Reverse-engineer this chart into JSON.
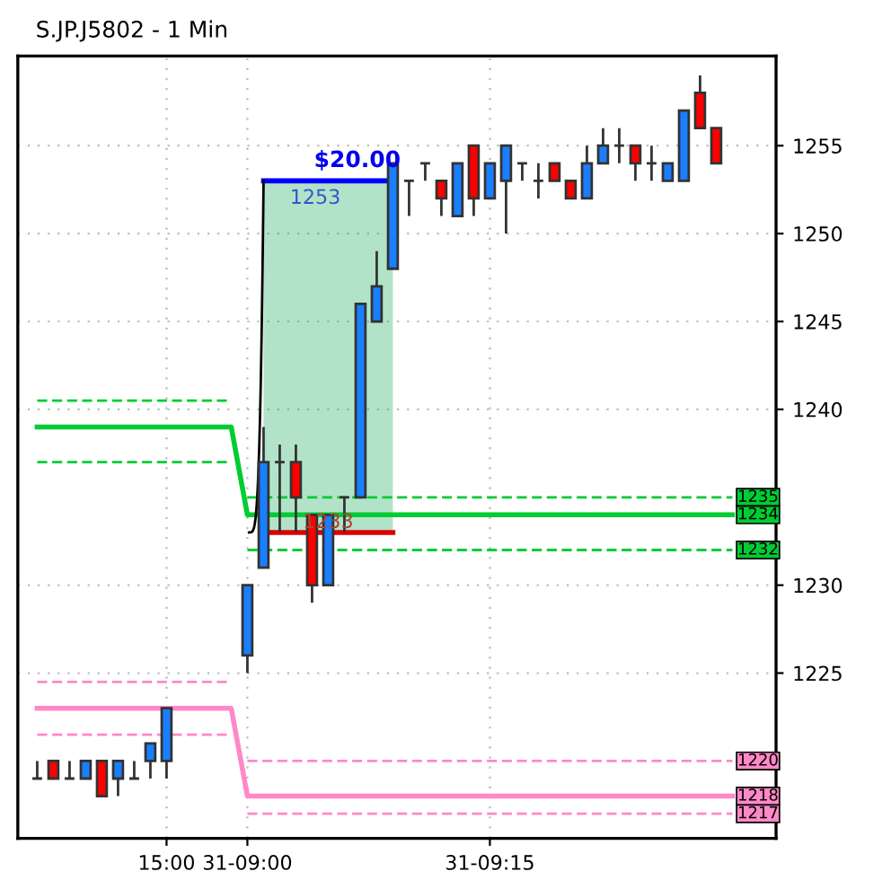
{
  "chart_data": {
    "type": "candlestick",
    "title": "S.JP.J5802 - 1 Min",
    "categories": [
      null,
      null,
      null,
      null,
      null,
      null,
      null,
      null,
      "15:00",
      null,
      null,
      null,
      null,
      "31-09:00",
      null,
      null,
      null,
      null,
      null,
      null,
      null,
      null,
      null,
      null,
      null,
      null,
      null,
      null,
      "31-09:15",
      null,
      null,
      null,
      null,
      null,
      null,
      null,
      null,
      null,
      null,
      null,
      null,
      null,
      null,
      null,
      null,
      null
    ],
    "ohlc": [
      [
        1219,
        1220,
        1219,
        1219
      ],
      [
        1220,
        1220,
        1219,
        1219
      ],
      [
        1219,
        1220,
        1219,
        1219
      ],
      [
        1219,
        1220,
        1219,
        1220
      ],
      [
        1220,
        1220,
        1218,
        1218
      ],
      [
        1219,
        1220,
        1218,
        1220
      ],
      [
        1219,
        1220,
        1219,
        1219
      ],
      [
        1220,
        1221,
        1219,
        1221
      ],
      [
        1220,
        1223,
        1219,
        1223
      ],
      null,
      null,
      null,
      null,
      [
        1226,
        1230,
        1225,
        1230
      ],
      [
        1231,
        1239,
        1231,
        1237
      ],
      [
        1237,
        1238,
        1233,
        1237
      ],
      [
        1237,
        1238,
        1233,
        1235
      ],
      [
        1234,
        1234,
        1229,
        1230
      ],
      [
        1230,
        1234,
        1230,
        1234
      ],
      [
        1235,
        1235,
        1233,
        1235
      ],
      [
        1235,
        1246,
        1235,
        1246
      ],
      [
        1245,
        1249,
        1245,
        1247
      ],
      [
        1248,
        1254,
        1248,
        1254
      ],
      [
        1253,
        1253,
        1251,
        1253
      ],
      [
        1254,
        1254,
        1253,
        1254
      ],
      [
        1253,
        1253,
        1251,
        1252
      ],
      [
        1251,
        1254,
        1251,
        1254
      ],
      [
        1255,
        1255,
        1251,
        1252
      ],
      [
        1252,
        1254,
        1252,
        1254
      ],
      [
        1253,
        1255,
        1250,
        1255
      ],
      [
        1254,
        1254,
        1253,
        1254
      ],
      [
        1253,
        1254,
        1252,
        1253
      ],
      [
        1254,
        1254,
        1253,
        1253
      ],
      [
        1253,
        1253,
        1252,
        1252
      ],
      [
        1252,
        1255,
        1252,
        1254
      ],
      [
        1254,
        1256,
        1254,
        1255
      ],
      [
        1255,
        1256,
        1254,
        1255
      ],
      [
        1255,
        1255,
        1253,
        1254
      ],
      [
        1254,
        1255,
        1253,
        1254
      ],
      [
        1253,
        1254,
        1253,
        1254
      ],
      [
        1253,
        1257,
        1253,
        1257
      ],
      [
        1258,
        1259,
        1256,
        1256
      ],
      [
        1256,
        1256,
        1254,
        1254
      ],
      null,
      null,
      null
    ],
    "colors": [
      "#333333",
      "#ff0000",
      "#333333",
      "#1a7fff",
      "#ff0000",
      "#1a7fff",
      "#333333",
      "#1a7fff",
      "#1a7fff",
      null,
      null,
      null,
      null,
      "#1a7fff",
      "#1a7fff",
      "#333333",
      "#ff0000",
      "#ff0000",
      "#1a7fff",
      "#333333",
      "#1a7fff",
      "#1a7fff",
      "#1a7fff",
      "#333333",
      "#333333",
      "#ff0000",
      "#1a7fff",
      "#ff0000",
      "#1a7fff",
      "#1a7fff",
      "#333333",
      "#333333",
      "#ff0000",
      "#ff0000",
      "#1a7fff",
      "#1a7fff",
      "#333333",
      "#ff0000",
      "#333333",
      "#1a7fff",
      "#1a7fff",
      "#ff0000",
      "#ff0000",
      null,
      null,
      null
    ],
    "series": [
      {
        "type": "line",
        "color": "#00cc33",
        "line_style": "dashed",
        "values": [
          1240.5,
          1240.5,
          1240.5,
          1240.5,
          1240.5,
          1240.5,
          1240.5,
          1240.5,
          1240.5,
          1240.5,
          1240.5,
          1240.5,
          1240.5,
          null,
          null,
          null,
          null,
          null,
          null,
          null,
          null,
          null,
          null,
          null,
          null,
          null,
          null,
          null,
          null,
          null,
          null,
          null,
          null,
          null,
          null,
          null,
          null,
          null,
          null,
          null,
          null,
          null,
          null,
          null,
          null,
          null
        ]
      },
      {
        "type": "line",
        "color": "#00cc33",
        "line_style": "solid",
        "values": [
          1239,
          1239,
          1239,
          1239,
          1239,
          1239,
          1239,
          1239,
          1239,
          1239,
          1239,
          1239,
          1239,
          1234,
          1234,
          1234,
          1234,
          1234,
          1234,
          1234,
          1234,
          1234,
          1234,
          1234,
          1234,
          1234,
          1234,
          1234,
          1234,
          1234,
          1234,
          1234,
          1234,
          1234,
          1234,
          1234,
          1234,
          1234,
          1234,
          1234,
          1234,
          1234,
          1234,
          1234,
          null,
          null
        ],
        "value_labels": [
          null,
          null,
          null,
          null,
          null,
          null,
          null,
          null,
          null,
          null,
          null,
          null,
          null,
          null,
          null,
          null,
          null,
          null,
          null,
          null,
          null,
          null,
          null,
          null,
          null,
          null,
          null,
          null,
          null,
          null,
          null,
          null,
          null,
          null,
          null,
          null,
          null,
          null,
          null,
          null,
          null,
          null,
          null,
          "1234",
          null,
          null
        ]
      },
      {
        "type": "line",
        "color": "#00cc33",
        "line_style": "dashed",
        "values": [
          1237,
          1237,
          1237,
          1237,
          1237,
          1237,
          1237,
          1237,
          1237,
          1237,
          1237,
          1237,
          1237,
          null,
          null,
          null,
          null,
          null,
          null,
          null,
          null,
          null,
          null,
          null,
          null,
          null,
          null,
          null,
          null,
          null,
          null,
          null,
          null,
          null,
          null,
          null,
          null,
          null,
          null,
          null,
          null,
          null,
          null,
          null,
          null,
          null
        ]
      },
      {
        "type": "line",
        "color": "#00cc33",
        "line_style": "dashed",
        "values": [
          null,
          null,
          null,
          null,
          null,
          null,
          null,
          null,
          null,
          null,
          null,
          null,
          null,
          1235,
          1235,
          1235,
          1235,
          1235,
          1235,
          1235,
          1235,
          1235,
          1235,
          1235,
          1235,
          1235,
          1235,
          1235,
          1235,
          1235,
          1235,
          1235,
          1235,
          1235,
          1235,
          1235,
          1235,
          1235,
          1235,
          1235,
          1235,
          1235,
          1235,
          1235,
          null,
          null
        ],
        "value_labels": [
          null,
          null,
          null,
          null,
          null,
          null,
          null,
          null,
          null,
          null,
          null,
          null,
          null,
          null,
          null,
          null,
          null,
          null,
          null,
          null,
          null,
          null,
          null,
          null,
          null,
          null,
          null,
          null,
          null,
          null,
          null,
          null,
          null,
          null,
          null,
          null,
          null,
          null,
          null,
          null,
          null,
          null,
          null,
          "1235",
          null,
          null
        ]
      },
      {
        "type": "line",
        "color": "#00cc33",
        "line_style": "dashed",
        "values": [
          null,
          null,
          null,
          null,
          null,
          null,
          null,
          null,
          null,
          null,
          null,
          null,
          null,
          1232,
          1232,
          1232,
          1232,
          1232,
          1232,
          1232,
          1232,
          1232,
          1232,
          1232,
          1232,
          1232,
          1232,
          1232,
          1232,
          1232,
          1232,
          1232,
          1232,
          1232,
          1232,
          1232,
          1232,
          1232,
          1232,
          1232,
          1232,
          1232,
          1232,
          1232,
          null,
          null
        ],
        "value_labels": [
          null,
          null,
          null,
          null,
          null,
          null,
          null,
          null,
          null,
          null,
          null,
          null,
          null,
          null,
          null,
          null,
          null,
          null,
          null,
          null,
          null,
          null,
          null,
          null,
          null,
          null,
          null,
          null,
          null,
          null,
          null,
          null,
          null,
          null,
          null,
          null,
          null,
          null,
          null,
          null,
          null,
          null,
          null,
          "1232",
          null,
          null
        ]
      },
      {
        "type": "line",
        "color": "#ff88c8",
        "line_style": "dashed",
        "values": [
          1224.5,
          1224.5,
          1224.5,
          1224.5,
          1224.5,
          1224.5,
          1224.5,
          1224.5,
          1224.5,
          1224.5,
          1224.5,
          1224.5,
          1224.5,
          null,
          null,
          null,
          null,
          null,
          null,
          null,
          null,
          null,
          null,
          null,
          null,
          null,
          null,
          null,
          null,
          null,
          null,
          null,
          null,
          null,
          null,
          null,
          null,
          null,
          null,
          null,
          null,
          null,
          null,
          null,
          null,
          null
        ]
      },
      {
        "type": "line",
        "color": "#ff88c8",
        "line_style": "solid",
        "values": [
          1223,
          1223,
          1223,
          1223,
          1223,
          1223,
          1223,
          1223,
          1223,
          1223,
          1223,
          1223,
          1223,
          1218,
          1218,
          1218,
          1218,
          1218,
          1218,
          1218,
          1218,
          1218,
          1218,
          1218,
          1218,
          1218,
          1218,
          1218,
          1218,
          1218,
          1218,
          1218,
          1218,
          1218,
          1218,
          1218,
          1218,
          1218,
          1218,
          1218,
          1218,
          1218,
          1218,
          1218,
          null,
          null
        ],
        "value_labels": [
          null,
          null,
          null,
          null,
          null,
          null,
          null,
          null,
          null,
          null,
          null,
          null,
          null,
          null,
          null,
          null,
          null,
          null,
          null,
          null,
          null,
          null,
          null,
          null,
          null,
          null,
          null,
          null,
          null,
          null,
          null,
          null,
          null,
          null,
          null,
          null,
          null,
          null,
          null,
          null,
          null,
          null,
          null,
          "1218",
          null,
          null
        ]
      },
      {
        "type": "line",
        "color": "#ff88c8",
        "line_style": "dashed",
        "values": [
          1221.5,
          1221.5,
          1221.5,
          1221.5,
          1221.5,
          1221.5,
          1221.5,
          1221.5,
          1221.5,
          1221.5,
          1221.5,
          1221.5,
          1221.5,
          null,
          null,
          null,
          null,
          null,
          null,
          null,
          null,
          null,
          null,
          null,
          null,
          null,
          null,
          null,
          null,
          null,
          null,
          null,
          null,
          null,
          null,
          null,
          null,
          null,
          null,
          null,
          null,
          null,
          null,
          null,
          null,
          null
        ]
      },
      {
        "type": "line",
        "color": "#ff88c8",
        "line_style": "dashed",
        "values": [
          null,
          null,
          null,
          null,
          null,
          null,
          null,
          null,
          null,
          null,
          null,
          null,
          null,
          1220,
          1220,
          1220,
          1220,
          1220,
          1220,
          1220,
          1220,
          1220,
          1220,
          1220,
          1220,
          1220,
          1220,
          1220,
          1220,
          1220,
          1220,
          1220,
          1220,
          1220,
          1220,
          1220,
          1220,
          1220,
          1220,
          1220,
          1220,
          1220,
          1220,
          1220,
          null,
          null
        ],
        "value_labels": [
          null,
          null,
          null,
          null,
          null,
          null,
          null,
          null,
          null,
          null,
          null,
          null,
          null,
          null,
          null,
          null,
          null,
          null,
          null,
          null,
          null,
          null,
          null,
          null,
          null,
          null,
          null,
          null,
          null,
          null,
          null,
          null,
          null,
          null,
          null,
          null,
          null,
          null,
          null,
          null,
          null,
          null,
          null,
          "1220",
          null,
          null
        ]
      },
      {
        "type": "line",
        "color": "#ff88c8",
        "line_style": "dashed",
        "values": [
          null,
          null,
          null,
          null,
          null,
          null,
          null,
          null,
          null,
          null,
          null,
          null,
          null,
          1217,
          1217,
          1217,
          1217,
          1217,
          1217,
          1217,
          1217,
          1217,
          1217,
          1217,
          1217,
          1217,
          1217,
          1217,
          1217,
          1217,
          1217,
          1217,
          1217,
          1217,
          1217,
          1217,
          1217,
          1217,
          1217,
          1217,
          1217,
          1217,
          1217,
          1217,
          null,
          null
        ],
        "value_labels": [
          null,
          null,
          null,
          null,
          null,
          null,
          null,
          null,
          null,
          null,
          null,
          null,
          null,
          null,
          null,
          null,
          null,
          null,
          null,
          null,
          null,
          null,
          null,
          null,
          null,
          null,
          null,
          null,
          null,
          null,
          null,
          null,
          null,
          null,
          null,
          null,
          null,
          null,
          null,
          null,
          null,
          null,
          null,
          "1217",
          null,
          null
        ]
      },
      {
        "type": "line",
        "color": "#0000ff",
        "line_style": "solid",
        "values": [
          null,
          null,
          null,
          null,
          null,
          null,
          null,
          null,
          null,
          null,
          null,
          null,
          null,
          null,
          1253,
          1253,
          1253,
          1253,
          1253,
          1253,
          1253,
          1253,
          1253,
          null,
          null,
          null,
          null,
          null,
          null,
          null,
          null,
          null,
          null,
          null,
          null,
          null,
          null,
          null,
          null,
          null,
          null,
          null,
          null,
          null,
          null,
          null
        ],
        "lower": [
          null,
          null,
          null,
          null,
          null,
          null,
          null,
          null,
          null,
          null,
          null,
          null,
          null,
          null,
          1233,
          1233,
          1233,
          1233,
          1233,
          1233,
          1233,
          1233,
          1233,
          null,
          null,
          null,
          null,
          null,
          null,
          null,
          null,
          null,
          null,
          null,
          null,
          null,
          null,
          null,
          null,
          null,
          null,
          null,
          null,
          null,
          null,
          null
        ],
        "upper": [
          null,
          null,
          null,
          null,
          null,
          null,
          null,
          null,
          null,
          null,
          null,
          null,
          null,
          null,
          1253,
          1253,
          1253,
          1253,
          1253,
          1253,
          1253,
          1253,
          1253,
          null,
          null,
          null,
          null,
          null,
          null,
          null,
          null,
          null,
          null,
          null,
          null,
          null,
          null,
          null,
          null,
          null,
          null,
          null,
          null,
          null,
          null,
          null
        ]
      },
      {
        "type": "line",
        "color": "#dd0000",
        "line_style": "solid",
        "values": [
          null,
          null,
          null,
          null,
          null,
          null,
          null,
          null,
          null,
          null,
          null,
          null,
          null,
          null,
          1233,
          1233,
          1233,
          1233,
          1233,
          1233,
          1233,
          1233,
          1233,
          null,
          null,
          null,
          null,
          null,
          null,
          null,
          null,
          null,
          null,
          null,
          null,
          null,
          null,
          null,
          null,
          null,
          null,
          null,
          null,
          null,
          null,
          null
        ]
      }
    ],
    "annotations": [
      {
        "text": "$20.00",
        "y": 1253
      },
      {
        "text": "1253",
        "y": 1253
      },
      {
        "text": "1233",
        "y": 1233
      }
    ],
    "ylim": [
      1215.6,
      1260.1
    ],
    "yticks": [
      1225,
      1230,
      1240,
      1245,
      1250,
      1255
    ],
    "grid": true
  }
}
